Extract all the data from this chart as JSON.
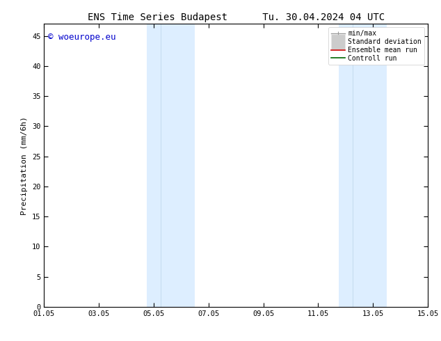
{
  "title": "ENS Time Series Budapest      Tu. 30.04.2024 04 UTC",
  "ylabel": "Precipitation (mm/6h)",
  "xlabel": "",
  "ylim": [
    0,
    47
  ],
  "yticks": [
    0,
    5,
    10,
    15,
    20,
    25,
    30,
    35,
    40,
    45
  ],
  "xtick_labels": [
    "01.05",
    "03.05",
    "05.05",
    "07.05",
    "09.05",
    "11.05",
    "13.05",
    "15.05"
  ],
  "xtick_positions": [
    0,
    2,
    4,
    6,
    8,
    10,
    12,
    14
  ],
  "xlim": [
    0,
    14
  ],
  "shaded_regions": [
    {
      "x_start": 3.75,
      "x_end": 4.25,
      "color": "#cce0f0"
    },
    {
      "x_start": 4.25,
      "x_end": 5.5,
      "color": "#ddeef8"
    },
    {
      "x_start": 10.75,
      "x_end": 11.25,
      "color": "#cce0f0"
    },
    {
      "x_start": 11.25,
      "x_end": 12.5,
      "color": "#ddeef8"
    }
  ],
  "shaded_color": "#ddeeff",
  "shaded_edge_color": "none",
  "background_color": "#ffffff",
  "watermark_text": "© woeurope.eu",
  "watermark_color": "#0000cc",
  "watermark_fontsize": 9,
  "legend_entries": [
    {
      "label": "min/max",
      "color": "#999999",
      "lw": 1.0,
      "style": "line_with_caps"
    },
    {
      "label": "Standard deviation",
      "color": "#cccccc",
      "lw": 5,
      "style": "thick"
    },
    {
      "label": "Ensemble mean run",
      "color": "#cc0000",
      "lw": 1.2,
      "style": "line"
    },
    {
      "label": "Controll run",
      "color": "#006600",
      "lw": 1.2,
      "style": "line"
    }
  ],
  "title_fontsize": 10,
  "axis_fontsize": 8,
  "tick_fontsize": 7.5,
  "legend_fontsize": 7
}
